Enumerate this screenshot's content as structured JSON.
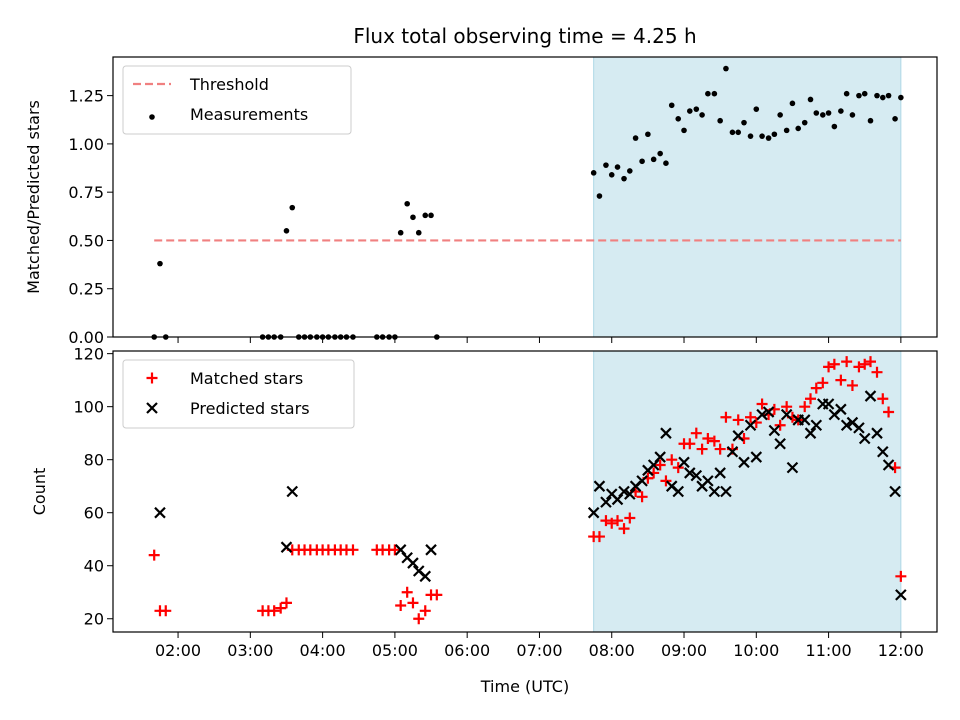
{
  "title": "Flux total observing time = 4.25 h",
  "colors": {
    "threshold": "#f08080",
    "measurement": "#000000",
    "matched": "#ff0000",
    "predicted": "#000000",
    "highlight": "#add8e6"
  },
  "chart_data": [
    {
      "type": "scatter",
      "ylabel": "Matched/Predicted stars",
      "xlim": [
        1.1,
        12.5
      ],
      "ylim": [
        0,
        1.45
      ],
      "yticks": [
        0.0,
        0.25,
        0.5,
        0.75,
        1.0,
        1.25
      ],
      "ytick_labels": [
        "0.00",
        "0.25",
        "0.50",
        "0.75",
        "1.00",
        "1.25"
      ],
      "highlight_span": [
        7.75,
        12.0
      ],
      "legend_placement": "top-left",
      "legend": [
        {
          "label": "Threshold",
          "kind": "dashed-line"
        },
        {
          "label": "Measurements",
          "kind": "dot"
        }
      ],
      "threshold": {
        "name": "Threshold",
        "y": 0.5,
        "x": [
          1.67,
          12.0
        ]
      },
      "series": [
        {
          "name": "Measurements",
          "x": [
            1.67,
            1.75,
            1.83,
            3.17,
            3.25,
            3.33,
            3.42,
            3.5,
            3.58,
            3.67,
            3.75,
            3.83,
            3.92,
            4.0,
            4.08,
            4.17,
            4.25,
            4.33,
            4.42,
            4.75,
            4.83,
            4.92,
            5.0,
            5.08,
            5.17,
            5.25,
            5.33,
            5.42,
            5.5,
            5.58,
            7.75,
            7.83,
            7.92,
            8.0,
            8.08,
            8.17,
            8.25,
            8.33,
            8.42,
            8.5,
            8.58,
            8.67,
            8.75,
            8.83,
            8.92,
            9.0,
            9.08,
            9.17,
            9.25,
            9.33,
            9.42,
            9.5,
            9.58,
            9.67,
            9.75,
            9.83,
            9.92,
            10.0,
            10.08,
            10.17,
            10.25,
            10.33,
            10.42,
            10.5,
            10.58,
            10.67,
            10.75,
            10.83,
            10.92,
            11.0,
            11.08,
            11.17,
            11.25,
            11.33,
            11.42,
            11.5,
            11.58,
            11.67,
            11.75,
            11.83,
            11.92,
            12.0
          ],
          "y": [
            0.0,
            0.38,
            0.0,
            0.0,
            0.0,
            0.0,
            0.0,
            0.55,
            0.67,
            0.0,
            0.0,
            0.0,
            0.0,
            0.0,
            0.0,
            0.0,
            0.0,
            0.0,
            0.0,
            0.0,
            0.0,
            0.0,
            0.0,
            0.54,
            0.69,
            0.62,
            0.54,
            0.63,
            0.63,
            0.0,
            0.85,
            0.73,
            0.89,
            0.84,
            0.88,
            0.82,
            0.86,
            1.03,
            0.91,
            1.05,
            0.92,
            0.95,
            0.9,
            1.2,
            1.13,
            1.07,
            1.17,
            1.18,
            1.15,
            1.26,
            1.26,
            1.12,
            1.39,
            1.06,
            1.06,
            1.11,
            1.04,
            1.18,
            1.04,
            1.03,
            1.05,
            1.15,
            1.07,
            1.21,
            1.08,
            1.11,
            1.23,
            1.16,
            1.15,
            1.16,
            1.09,
            1.17,
            1.26,
            1.15,
            1.25,
            1.26,
            1.12,
            1.25,
            1.24,
            1.25,
            1.13,
            1.24
          ]
        }
      ]
    },
    {
      "type": "scatter",
      "xlabel": "Time (UTC)",
      "ylabel": "Count",
      "xlim": [
        1.1,
        12.5
      ],
      "ylim": [
        15,
        121
      ],
      "xticks": [
        2,
        3,
        4,
        5,
        6,
        7,
        8,
        9,
        10,
        11,
        12
      ],
      "xtick_labels": [
        "02:00",
        "03:00",
        "04:00",
        "05:00",
        "06:00",
        "07:00",
        "08:00",
        "09:00",
        "10:00",
        "11:00",
        "12:00"
      ],
      "yticks": [
        20,
        40,
        60,
        80,
        100,
        120
      ],
      "ytick_labels": [
        "20",
        "40",
        "60",
        "80",
        "100",
        "120"
      ],
      "highlight_span": [
        7.75,
        12.0
      ],
      "legend_placement": "top-left",
      "legend": [
        {
          "label": "Matched stars",
          "kind": "plus"
        },
        {
          "label": "Predicted stars",
          "kind": "cross"
        }
      ],
      "series": [
        {
          "name": "Matched stars",
          "x": [
            1.67,
            1.75,
            1.83,
            3.17,
            3.25,
            3.33,
            3.42,
            3.5,
            3.58,
            3.67,
            3.75,
            3.83,
            3.92,
            4.0,
            4.08,
            4.17,
            4.25,
            4.33,
            4.42,
            4.75,
            4.83,
            4.92,
            5.0,
            5.08,
            5.17,
            5.25,
            5.33,
            5.42,
            5.5,
            5.58,
            7.75,
            7.83,
            7.92,
            8.0,
            8.08,
            8.17,
            8.25,
            8.33,
            8.42,
            8.5,
            8.58,
            8.67,
            8.75,
            8.83,
            8.92,
            9.0,
            9.08,
            9.17,
            9.25,
            9.33,
            9.42,
            9.5,
            9.58,
            9.67,
            9.75,
            9.83,
            9.92,
            10.0,
            10.08,
            10.17,
            10.25,
            10.33,
            10.42,
            10.5,
            10.58,
            10.67,
            10.75,
            10.83,
            10.92,
            11.0,
            11.08,
            11.17,
            11.25,
            11.33,
            11.42,
            11.5,
            11.58,
            11.67,
            11.75,
            11.83,
            11.92,
            12.0
          ],
          "y": [
            44,
            23,
            23,
            23,
            23,
            23,
            24,
            26,
            46,
            46,
            46,
            46,
            46,
            46,
            46,
            46,
            46,
            46,
            46,
            46,
            46,
            46,
            46,
            25,
            30,
            26,
            20,
            23,
            29,
            29,
            51,
            51,
            57,
            56,
            57,
            54,
            58,
            68,
            66,
            73,
            75,
            78,
            72,
            80,
            77,
            86,
            86,
            90,
            84,
            88,
            87,
            84,
            96,
            84,
            95,
            88,
            96,
            94,
            101,
            97,
            99,
            93,
            100,
            96,
            95,
            100,
            103,
            107,
            109,
            115,
            116,
            110,
            117,
            108,
            115,
            116,
            117,
            113,
            103,
            98,
            77,
            36
          ]
        },
        {
          "name": "Predicted stars",
          "x": [
            1.75,
            3.5,
            3.58,
            5.08,
            5.17,
            5.25,
            5.33,
            5.42,
            5.5,
            7.75,
            7.83,
            7.92,
            8.0,
            8.08,
            8.17,
            8.25,
            8.33,
            8.42,
            8.5,
            8.58,
            8.67,
            8.75,
            8.83,
            8.92,
            9.0,
            9.08,
            9.17,
            9.25,
            9.33,
            9.42,
            9.5,
            9.58,
            9.67,
            9.75,
            9.83,
            9.92,
            10.0,
            10.08,
            10.17,
            10.25,
            10.33,
            10.42,
            10.5,
            10.58,
            10.67,
            10.75,
            10.83,
            10.92,
            11.0,
            11.08,
            11.17,
            11.25,
            11.33,
            11.42,
            11.5,
            11.58,
            11.67,
            11.75,
            11.83,
            11.92,
            12.0
          ],
          "y": [
            60,
            47,
            68,
            46,
            43,
            41,
            38,
            36,
            46,
            60,
            70,
            64,
            67,
            65,
            68,
            67,
            70,
            72,
            76,
            78,
            81,
            90,
            70,
            68,
            79,
            75,
            74,
            70,
            72,
            68,
            75,
            68,
            83,
            89,
            79,
            93,
            81,
            97,
            98,
            91,
            86,
            97,
            77,
            95,
            95,
            90,
            93,
            101,
            101,
            97,
            99,
            93,
            94,
            92,
            88,
            104,
            90,
            83,
            78,
            68,
            29
          ]
        }
      ]
    }
  ]
}
